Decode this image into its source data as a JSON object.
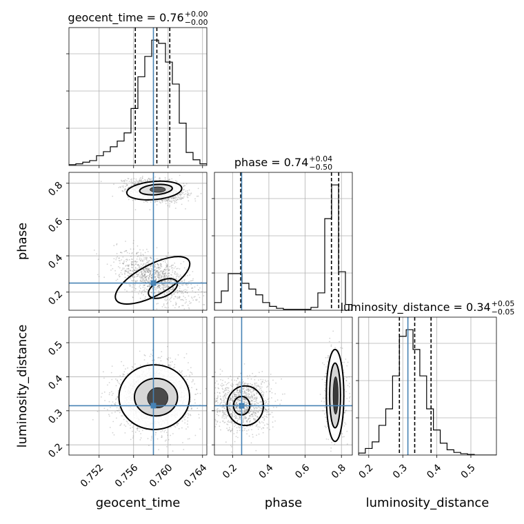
{
  "colors": {
    "truth": "#4682b4",
    "hist": "#000000",
    "grid": "#b0b0b0",
    "scatter": "#7f7f7f"
  },
  "chart_data": {
    "type": "corner",
    "parameters": [
      "geocent_time",
      "phase",
      "luminosity_distance"
    ],
    "truths": {
      "geocent_time": 0.7583,
      "phase": 0.25,
      "luminosity_distance": 0.315
    },
    "axes": {
      "geocent_time": {
        "range": [
          0.7485,
          0.7645
        ],
        "ticks": [
          0.752,
          0.756,
          0.76,
          0.764
        ],
        "tick_labels": [
          "0.752",
          "0.756",
          "0.760",
          "0.764"
        ],
        "label": "geocent_time"
      },
      "phase": {
        "range": [
          0.1,
          0.86
        ],
        "ticks": [
          0.2,
          0.4,
          0.6,
          0.8
        ],
        "tick_labels": [
          "0.2",
          "0.4",
          "0.6",
          "0.8"
        ],
        "label": "phase"
      },
      "luminosity_distance": {
        "range": [
          0.17,
          0.575
        ],
        "ticks": [
          0.2,
          0.3,
          0.4,
          0.5
        ],
        "tick_labels": [
          "0.2",
          "0.3",
          "0.4",
          "0.5"
        ],
        "label": "luminosity_distance"
      }
    },
    "titles": {
      "geocent_time": {
        "name": "geocent_time",
        "median": "0.76",
        "plus": "+0.00",
        "minus": "−0.00"
      },
      "phase": {
        "name": "phase",
        "median": "0.74",
        "plus": "+0.04",
        "minus": "−0.50"
      },
      "luminosity_distance": {
        "name": "luminosity_distance",
        "median": "0.34",
        "plus": "+0.05",
        "minus": "−0.05"
      }
    },
    "histograms": {
      "geocent_time": {
        "edges": [
          0.7485,
          0.7493,
          0.7501,
          0.7509,
          0.7517,
          0.7525,
          0.7533,
          0.7541,
          0.7549,
          0.7557,
          0.7565,
          0.7573,
          0.7581,
          0.7589,
          0.7597,
          0.7605,
          0.7613,
          0.7621,
          0.7629,
          0.7637,
          0.7645
        ],
        "counts": [
          1,
          2,
          4,
          6,
          12,
          17,
          23,
          30,
          40,
          70,
          109,
          134,
          154,
          150,
          127,
          100,
          52,
          16,
          7,
          2
        ],
        "quantiles": [
          0.7562,
          0.7587,
          0.7602
        ]
      },
      "phase": {
        "edges": [
          0.1,
          0.138,
          0.176,
          0.214,
          0.252,
          0.29,
          0.328,
          0.366,
          0.404,
          0.442,
          0.48,
          0.518,
          0.556,
          0.594,
          0.632,
          0.67,
          0.708,
          0.746,
          0.784,
          0.822,
          0.86
        ],
        "counts": [
          8,
          20,
          38,
          38,
          28,
          22,
          16,
          8,
          4,
          2,
          1,
          1,
          1,
          1,
          3,
          18,
          95,
          130,
          40,
          6
        ],
        "quantiles": [
          0.245,
          0.745,
          0.785
        ]
      },
      "luminosity_distance": {
        "edges": [
          0.17,
          0.19,
          0.21,
          0.23,
          0.25,
          0.27,
          0.29,
          0.31,
          0.33,
          0.35,
          0.37,
          0.39,
          0.41,
          0.43,
          0.45,
          0.47,
          0.49,
          0.51,
          0.53,
          0.55,
          0.575
        ],
        "counts": [
          3,
          10,
          20,
          45,
          70,
          120,
          180,
          190,
          160,
          120,
          70,
          38,
          18,
          8,
          4,
          2,
          1,
          0,
          0,
          0
        ],
        "quantiles": [
          0.29,
          0.335,
          0.383
        ]
      }
    },
    "pairs": [
      {
        "x": "geocent_time",
        "y": "phase",
        "clusters": [
          {
            "cx": 0.7587,
            "cy": 0.76,
            "sx": 0.0016,
            "sy": 0.03,
            "n": 1500,
            "rho": -0.3
          },
          {
            "cx": 0.7585,
            "cy": 0.28,
            "sx": 0.0022,
            "sy": 0.07,
            "n": 1100,
            "rho": -0.55
          }
        ],
        "contours": [
          {
            "level": "outer",
            "cx": 0.7584,
            "cy": 0.76,
            "rx": 0.0032,
            "ry": 0.05,
            "rot": -5,
            "fill": "#ffffff"
          },
          {
            "level": "inner",
            "cx": 0.7586,
            "cy": 0.765,
            "rx": 0.0019,
            "ry": 0.028,
            "rot": -5,
            "fill": "#dcdcdc"
          },
          {
            "level": "core",
            "cx": 0.7588,
            "cy": 0.765,
            "rx": 0.0009,
            "ry": 0.015,
            "rot": 0,
            "fill": "#5c5c5c"
          },
          {
            "level": "outer",
            "cx": 0.7582,
            "cy": 0.265,
            "rx": 0.0048,
            "ry": 0.085,
            "rot": -28,
            "fill": "none"
          },
          {
            "level": "inner",
            "cx": 0.7594,
            "cy": 0.22,
            "rx": 0.0018,
            "ry": 0.045,
            "rot": -25,
            "fill": "none"
          }
        ]
      },
      {
        "x": "geocent_time",
        "y": "luminosity_distance",
        "clusters": [
          {
            "cx": 0.7585,
            "cy": 0.34,
            "sx": 0.002,
            "sy": 0.045,
            "n": 2200,
            "rho": 0.0
          }
        ],
        "contours": [
          {
            "level": "outer",
            "cx": 0.7584,
            "cy": 0.34,
            "rx": 0.0041,
            "ry": 0.095,
            "rot": 0,
            "fill": "#ffffff"
          },
          {
            "level": "inner",
            "cx": 0.7586,
            "cy": 0.34,
            "rx": 0.0025,
            "ry": 0.055,
            "rot": 0,
            "fill": "#d0d0d0"
          },
          {
            "level": "core",
            "cx": 0.7588,
            "cy": 0.338,
            "rx": 0.0012,
            "ry": 0.03,
            "rot": 0,
            "fill": "#4a4a4a"
          }
        ]
      },
      {
        "x": "phase",
        "y": "luminosity_distance",
        "clusters": [
          {
            "cx": 0.25,
            "cy": 0.32,
            "sx": 0.08,
            "sy": 0.04,
            "n": 1100,
            "rho": 0.0
          },
          {
            "cx": 0.765,
            "cy": 0.345,
            "sx": 0.025,
            "sy": 0.05,
            "n": 1200,
            "rho": 0.0
          }
        ],
        "contours": [
          {
            "level": "outer",
            "cx": 0.765,
            "cy": 0.345,
            "rx": 0.048,
            "ry": 0.135,
            "rot": 0,
            "fill": "#ffffff"
          },
          {
            "level": "inner",
            "cx": 0.765,
            "cy": 0.345,
            "rx": 0.03,
            "ry": 0.095,
            "rot": 0,
            "fill": "#cfcfcf"
          },
          {
            "level": "core",
            "cx": 0.768,
            "cy": 0.345,
            "rx": 0.014,
            "ry": 0.055,
            "rot": 0,
            "fill": "#3a3a3a"
          },
          {
            "level": "outer",
            "cx": 0.27,
            "cy": 0.315,
            "rx": 0.1,
            "ry": 0.058,
            "rot": 0,
            "fill": "none"
          },
          {
            "level": "inner",
            "cx": 0.25,
            "cy": 0.315,
            "rx": 0.045,
            "ry": 0.027,
            "rot": 0,
            "fill": "none"
          }
        ]
      }
    ]
  }
}
